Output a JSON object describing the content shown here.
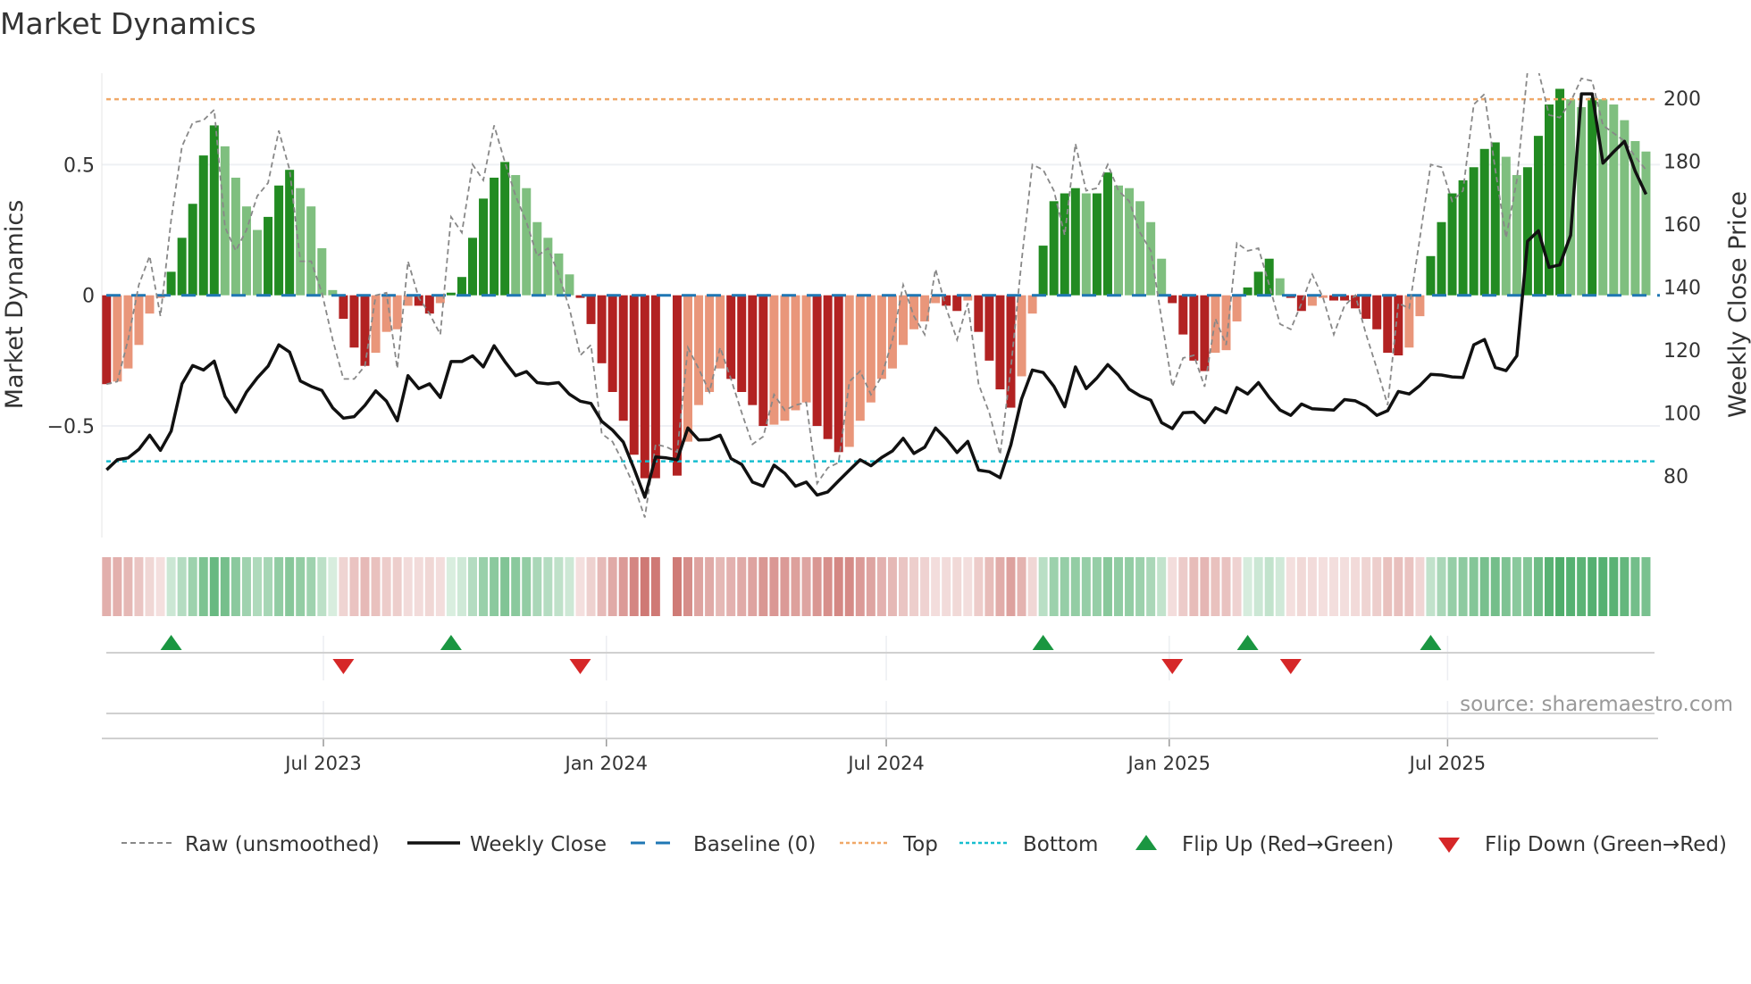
{
  "chart_data": {
    "type": "bar",
    "title": "Market Dynamics",
    "ylabel": "Market Dynamics",
    "y2label": "Weekly Close Price",
    "source": "source: sharemaestro.com",
    "start_date": "2023-02-10",
    "frequency": "weekly",
    "ylim": [
      -0.87,
      0.85
    ],
    "y2lim": [
      59,
      210
    ],
    "yticks": [
      {
        "value": 0.5,
        "label": "0.5"
      },
      {
        "value": 0,
        "label": "0"
      },
      {
        "value": -0.5,
        "label": "−0.5"
      }
    ],
    "y2ticks": [
      {
        "value": 200,
        "label": "200"
      },
      {
        "value": 180,
        "label": "180"
      },
      {
        "value": 160,
        "label": "160"
      },
      {
        "value": 140,
        "label": "140"
      },
      {
        "value": 120,
        "label": "120"
      },
      {
        "value": 100,
        "label": "100"
      },
      {
        "value": 80,
        "label": "80"
      }
    ],
    "xticks": [
      {
        "date": "2023-07-01",
        "label": "Jul 2023"
      },
      {
        "date": "2024-01-01",
        "label": "Jan 2024"
      },
      {
        "date": "2024-07-01",
        "label": "Jul 2024"
      },
      {
        "date": "2025-01-01",
        "label": "Jan 2025"
      },
      {
        "date": "2025-07-01",
        "label": "Jul 2025"
      }
    ],
    "top_level": 0.75,
    "bottom_level": -0.635,
    "baseline": 0,
    "colors": {
      "green_strong": "#228b22",
      "green_weak": "#7fbf7f",
      "red_strong": "#b22222",
      "red_weak": "#e9967a",
      "raw": "#888888",
      "close": "#111111",
      "baseline": "#1f77b4",
      "top": "#f0a868",
      "bottom": "#17becf",
      "flip_up": "#1a9641",
      "flip_down": "#d62728"
    },
    "series": [
      {
        "name": "Market Dynamics",
        "values": [
          -0.34,
          -0.33,
          -0.28,
          -0.19,
          -0.07,
          -0.01,
          0.09,
          0.22,
          0.35,
          0.535,
          0.65,
          0.57,
          0.45,
          0.34,
          0.25,
          0.3,
          0.42,
          0.48,
          0.41,
          0.34,
          0.18,
          0.02,
          -0.09,
          -0.2,
          -0.27,
          -0.22,
          -0.14,
          -0.13,
          -0.04,
          -0.04,
          -0.07,
          -0.03,
          0.01,
          0.07,
          0.22,
          0.37,
          0.45,
          0.51,
          0.46,
          0.41,
          0.28,
          0.22,
          0.16,
          0.08,
          -0.01,
          -0.11,
          -0.26,
          -0.37,
          -0.48,
          -0.61,
          -0.7,
          -0.7,
          null,
          -0.69,
          -0.56,
          -0.42,
          -0.37,
          -0.28,
          -0.32,
          -0.37,
          -0.42,
          -0.5,
          -0.495,
          -0.48,
          -0.44,
          -0.41,
          -0.5,
          -0.55,
          -0.6,
          -0.58,
          -0.48,
          -0.41,
          -0.32,
          -0.28,
          -0.19,
          -0.13,
          -0.1,
          -0.03,
          -0.04,
          -0.06,
          -0.02,
          -0.14,
          -0.25,
          -0.36,
          -0.43,
          -0.31,
          -0.07,
          0.19,
          0.36,
          0.39,
          0.41,
          0.39,
          0.39,
          0.47,
          0.42,
          0.41,
          0.36,
          0.28,
          0.14,
          -0.03,
          -0.15,
          -0.25,
          -0.29,
          -0.22,
          -0.21,
          -0.1,
          0.03,
          0.09,
          0.14,
          0.065,
          -0.01,
          -0.06,
          -0.04,
          -0.01,
          -0.02,
          -0.02,
          -0.05,
          -0.09,
          -0.13,
          -0.22,
          -0.23,
          -0.2,
          -0.08,
          0.15,
          0.28,
          0.39,
          0.44,
          0.49,
          0.56,
          0.585,
          0.53,
          0.46,
          0.49,
          0.61,
          0.73,
          0.79,
          0.75,
          0.72,
          0.755,
          0.75,
          0.73,
          0.67,
          0.59,
          0.55
        ]
      },
      {
        "name": "Raw (unsmoothed)",
        "values": [
          -0.34,
          -0.33,
          -0.17,
          0.04,
          0.15,
          -0.08,
          0.29,
          0.57,
          0.66,
          0.67,
          0.71,
          0.26,
          0.17,
          0.25,
          0.38,
          0.43,
          0.63,
          0.48,
          0.13,
          0.13,
          0.01,
          -0.17,
          -0.32,
          -0.32,
          -0.27,
          0.0,
          0.01,
          -0.28,
          0.13,
          -0.01,
          -0.07,
          -0.15,
          0.3,
          0.24,
          0.5,
          0.44,
          0.65,
          0.51,
          0.38,
          0.28,
          0.15,
          0.18,
          0.08,
          -0.05,
          -0.23,
          -0.19,
          -0.53,
          -0.56,
          -0.64,
          -0.73,
          -0.85,
          -0.57,
          -0.58,
          -0.6,
          -0.2,
          -0.28,
          -0.37,
          -0.2,
          -0.32,
          -0.45,
          -0.57,
          -0.54,
          -0.38,
          -0.44,
          -0.42,
          -0.41,
          -0.72,
          -0.66,
          -0.64,
          -0.33,
          -0.29,
          -0.38,
          -0.31,
          -0.17,
          0.04,
          -0.08,
          -0.15,
          0.1,
          -0.05,
          -0.17,
          -0.03,
          -0.34,
          -0.45,
          -0.61,
          -0.28,
          0.13,
          0.5,
          0.48,
          0.4,
          0.23,
          0.58,
          0.4,
          0.41,
          0.5,
          0.4,
          0.36,
          0.24,
          0.17,
          -0.09,
          -0.35,
          -0.24,
          -0.23,
          -0.35,
          -0.09,
          -0.19,
          0.2,
          0.17,
          0.18,
          0.04,
          -0.11,
          -0.13,
          -0.03,
          0.08,
          -0.01,
          -0.15,
          -0.04,
          0.0,
          -0.15,
          -0.28,
          -0.42,
          -0.03,
          -0.05,
          0.22,
          0.5,
          0.49,
          0.36,
          0.4,
          0.73,
          0.77,
          0.48,
          0.22,
          0.44,
          0.86,
          0.86,
          0.69,
          0.68,
          0.74,
          0.83,
          0.82,
          0.65,
          0.62,
          0.59,
          0.53,
          0.48
        ]
      },
      {
        "name": "Weekly Close",
        "axis": "right",
        "values": [
          82.0,
          85.2,
          85.8,
          88.5,
          93.0,
          88.2,
          94.3,
          109.3,
          115.1,
          113.7,
          116.5,
          105.3,
          100.3,
          106.7,
          111.2,
          114.9,
          121.7,
          119.4,
          110.2,
          108.5,
          107.2,
          101.7,
          98.4,
          98.9,
          102.5,
          107.1,
          103.8,
          97.6,
          111.9,
          107.8,
          109.3,
          105.0,
          116.4,
          116.4,
          118.2,
          114.7,
          121.4,
          116.4,
          111.9,
          113.2,
          109.7,
          109.3,
          109.7,
          106.0,
          103.8,
          103.1,
          97.4,
          94.6,
          90.8,
          82.3,
          73.3,
          86.1,
          85.8,
          85.2,
          95.3,
          91.5,
          91.6,
          93.0,
          85.6,
          83.7,
          78.1,
          76.8,
          83.5,
          80.9,
          76.8,
          78.1,
          74.0,
          75.0,
          78.5,
          81.9,
          85.2,
          83.3,
          85.9,
          88.0,
          92.0,
          87.2,
          89.2,
          95.3,
          91.8,
          87.5,
          91.0,
          81.9,
          81.4,
          79.5,
          89.9,
          104.5,
          113.7,
          112.9,
          108.5,
          102.0,
          114.7,
          107.8,
          111.2,
          115.4,
          112.1,
          107.6,
          105.5,
          104.1,
          97.0,
          95.1,
          100.1,
          100.3,
          97.0,
          101.7,
          100.1,
          108.1,
          106.1,
          109.7,
          105.0,
          101.0,
          99.3,
          102.9,
          101.4,
          101.2,
          101.0,
          104.3,
          103.9,
          102.2,
          99.3,
          100.8,
          106.9,
          106.1,
          108.8,
          112.3,
          112.1,
          111.5,
          111.3,
          121.7,
          123.4,
          114.5,
          113.5,
          118.2,
          154.6,
          157.9,
          146.3,
          147.1,
          156.5,
          201.4,
          201.4,
          179.4,
          183.0,
          186.3,
          176.8,
          169.5
        ]
      }
    ],
    "flips": {
      "up": [
        "2023-03-24",
        "2023-09-22",
        "2024-10-11",
        "2025-02-21",
        "2025-06-20"
      ],
      "down": [
        "2023-07-14",
        "2023-12-15",
        "2025-01-03",
        "2025-03-21"
      ]
    },
    "legend": {
      "placement": "bottom",
      "raw": "Raw (unsmoothed)",
      "close": "Weekly Close",
      "baseline": "Baseline (0)",
      "top": "Top",
      "bottom": "Bottom",
      "flip_up": "Flip Up (Red→Green)",
      "flip_down": "Flip Down (Green→Red)"
    }
  }
}
